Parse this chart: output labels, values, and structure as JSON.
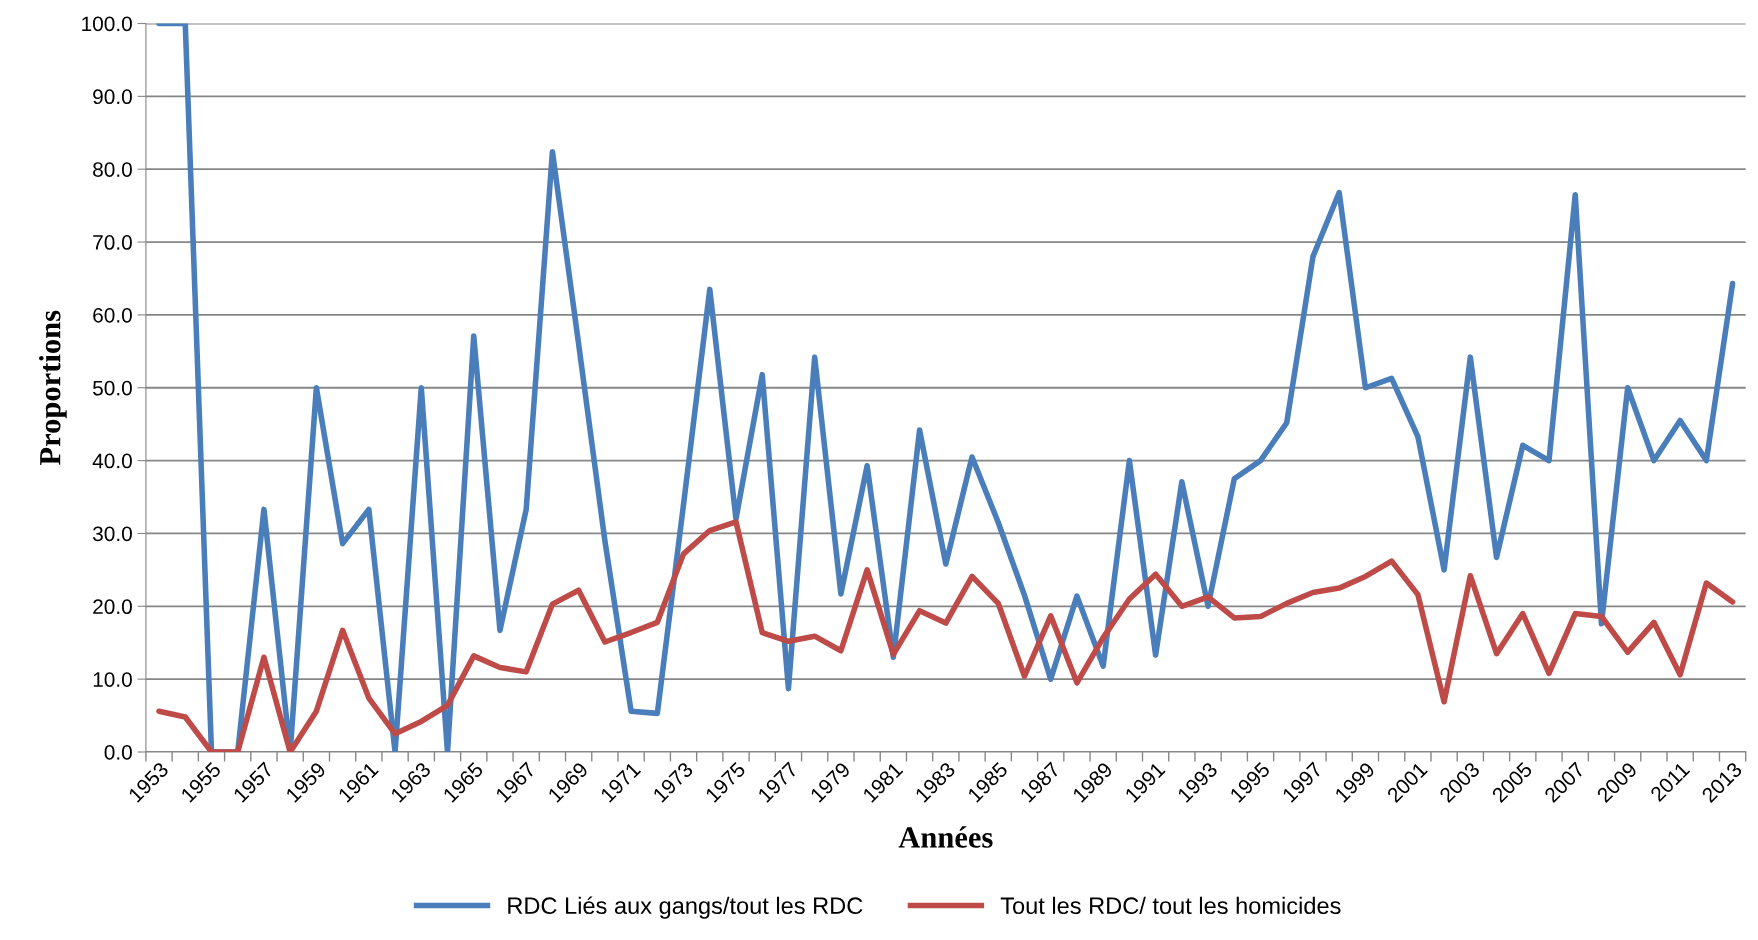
{
  "chart_data": {
    "type": "line",
    "xlabel": "Années",
    "ylabel": "Proportions",
    "categories": [
      "1953",
      null,
      "1955",
      null,
      "1957",
      null,
      "1959",
      null,
      "1961",
      null,
      "1963",
      null,
      "1965",
      null,
      "1967",
      null,
      "1969",
      null,
      "1971",
      null,
      "1973",
      null,
      "1975",
      null,
      "1977",
      null,
      "1979",
      null,
      "1981",
      null,
      "1983",
      null,
      "1985",
      null,
      "1987",
      null,
      "1989",
      null,
      "1991",
      null,
      "1993",
      null,
      "1995",
      null,
      "1997",
      null,
      "1999",
      null,
      "2001",
      null,
      "2003",
      null,
      "2005",
      null,
      "2007",
      null,
      "2009",
      null,
      "2011",
      null,
      "2013"
    ],
    "series": [
      {
        "name": "RDC Liés aux gangs/tout les RDC",
        "color": "#4a7ebb",
        "values": [
          100,
          100,
          0,
          0,
          33.3,
          0,
          50,
          28.6,
          33.3,
          0,
          50,
          0,
          57.1,
          16.7,
          33.3,
          82.4,
          56,
          29,
          5.6,
          5.3,
          34,
          63.5,
          32,
          51.8,
          8.7,
          54.2,
          21.7,
          39.3,
          13,
          44.2,
          25.8,
          40.5,
          31.5,
          21.5,
          10,
          21.4,
          11.8,
          40,
          13.3,
          37.1,
          20,
          37.5,
          40,
          45.2,
          68,
          76.8,
          50,
          51.3,
          43.3,
          25,
          54.2,
          26.7,
          42.1,
          40,
          76.5,
          17.6,
          50,
          40,
          45.5,
          40,
          64.3
        ]
      },
      {
        "name": "Tout les RDC/ tout les homicides",
        "color": "#be4b48",
        "values": [
          5.6,
          4.8,
          0,
          0,
          13,
          0,
          5.6,
          16.7,
          7.4,
          2.5,
          4.2,
          6.4,
          13.2,
          11.6,
          11,
          20.3,
          22.2,
          15.1,
          16.4,
          17.8,
          27.2,
          30.4,
          31.6,
          16.4,
          15.2,
          15.9,
          13.9,
          25,
          13.4,
          19.4,
          17.7,
          24.1,
          20.4,
          10.4,
          18.7,
          9.5,
          15.7,
          21,
          24.4,
          20,
          21.3,
          18.4,
          18.6,
          20.4,
          21.9,
          22.5,
          24.1,
          26.2,
          21.6,
          6.9,
          24.2,
          13.5,
          19,
          10.8,
          19,
          18.6,
          13.7,
          17.8,
          10.6,
          23.2,
          20.6
        ]
      }
    ],
    "ylim": [
      0,
      100
    ],
    "yticks": [
      {
        "value": 0,
        "label": "0.0"
      },
      {
        "value": 10,
        "label": "10.0"
      },
      {
        "value": 20,
        "label": "20.0"
      },
      {
        "value": 30,
        "label": "30.0"
      },
      {
        "value": 40,
        "label": "40.0"
      },
      {
        "value": 50,
        "label": "50.0"
      },
      {
        "value": 60,
        "label": "60.0"
      },
      {
        "value": 70,
        "label": "70.0"
      },
      {
        "value": 80,
        "label": "80.0"
      },
      {
        "value": 90,
        "label": "90.0"
      },
      {
        "value": 100,
        "label": "100.0"
      }
    ],
    "grid": "y",
    "legend": "bottom",
    "marker": "none",
    "line_style": "solid"
  }
}
